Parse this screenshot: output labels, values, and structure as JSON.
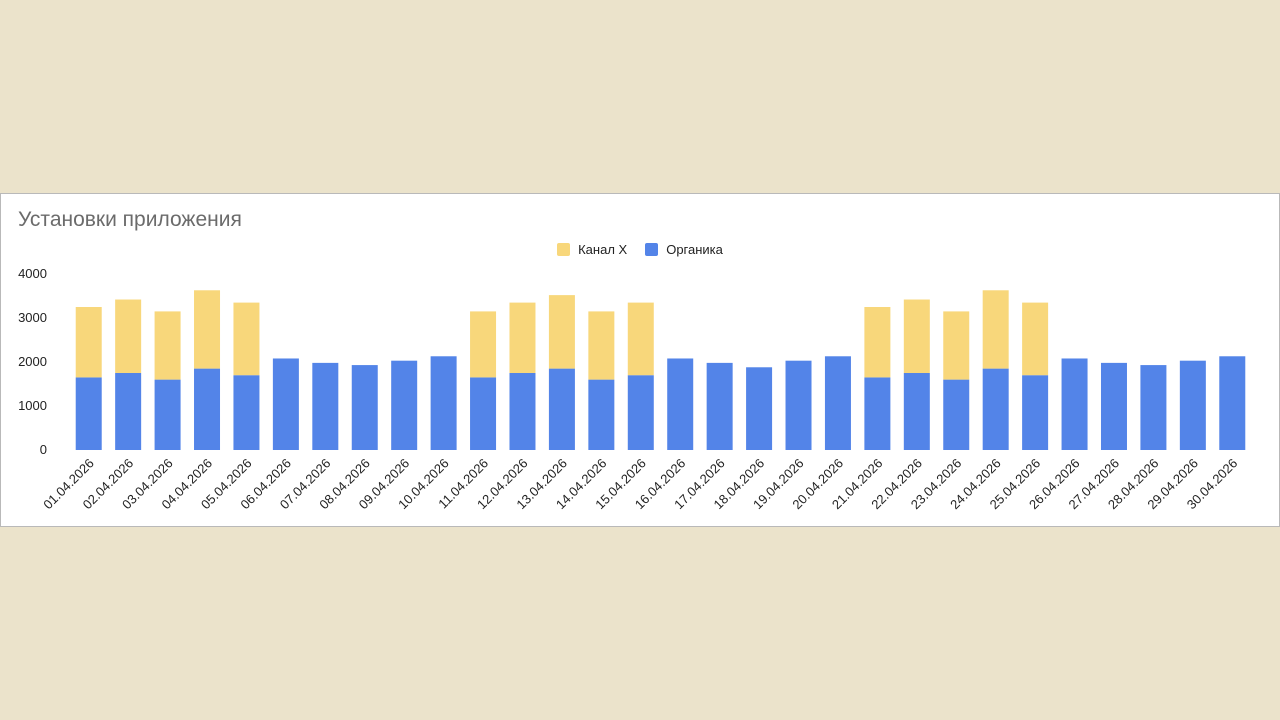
{
  "chart_data": {
    "type": "bar",
    "stacked": true,
    "title": "Установки приложения",
    "xlabel": "",
    "ylabel": "",
    "ylim": [
      0,
      4000
    ],
    "yticks": [
      0,
      1000,
      2000,
      3000,
      4000
    ],
    "legend_position": "top-center",
    "grid": false,
    "categories": [
      "01.04.2026",
      "02.04.2026",
      "03.04.2026",
      "04.04.2026",
      "05.04.2026",
      "06.04.2026",
      "07.04.2026",
      "08.04.2026",
      "09.04.2026",
      "10.04.2026",
      "11.04.2026",
      "12.04.2026",
      "13.04.2026",
      "14.04.2026",
      "15.04.2026",
      "16.04.2026",
      "17.04.2026",
      "18.04.2026",
      "19.04.2026",
      "20.04.2026",
      "21.04.2026",
      "22.04.2026",
      "23.04.2026",
      "24.04.2026",
      "25.04.2026",
      "26.04.2026",
      "27.04.2026",
      "28.04.2026",
      "29.04.2026",
      "30.04.2026"
    ],
    "series": [
      {
        "name": "Органика",
        "color": "#5384e8",
        "values": [
          1650,
          1750,
          1600,
          1850,
          1700,
          2080,
          1980,
          1930,
          2030,
          2130,
          1650,
          1750,
          1850,
          1600,
          1700,
          2080,
          1980,
          1880,
          2030,
          2130,
          1650,
          1750,
          1600,
          1850,
          1700,
          2080,
          1980,
          1930,
          2030,
          2130
        ]
      },
      {
        "name": "Канал X",
        "color": "#f8d77b",
        "values": [
          1600,
          1670,
          1550,
          1780,
          1650,
          0,
          0,
          0,
          0,
          0,
          1500,
          1600,
          1670,
          1550,
          1650,
          0,
          0,
          0,
          0,
          0,
          1600,
          1670,
          1550,
          1780,
          1650,
          0,
          0,
          0,
          0,
          0
        ]
      }
    ]
  },
  "legend": [
    {
      "label": "Канал X",
      "color": "#f8d77b"
    },
    {
      "label": "Органика",
      "color": "#5384e8"
    }
  ]
}
